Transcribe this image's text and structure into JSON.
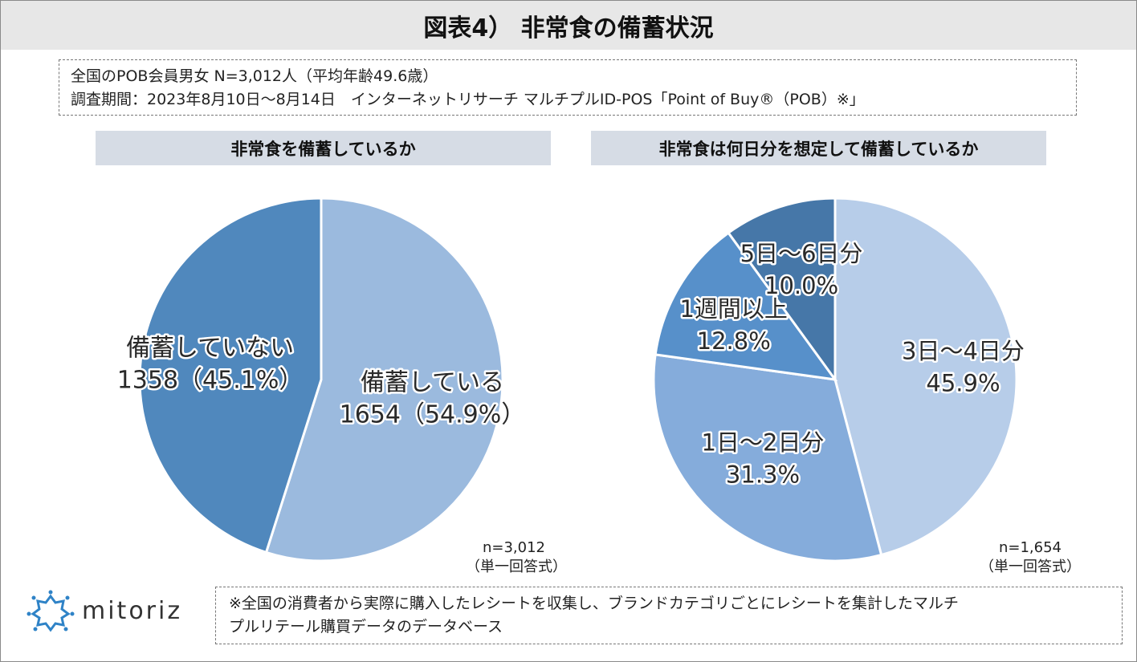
{
  "title": "図表4） 非常食の備蓄状況",
  "info": {
    "line1": "全国のPOB会員男女 N=3,012人（平均年齢49.6歳）",
    "line2": "調査期間：2023年8月10日～8月14日　インターネットリサーチ マルチプルID-POS「Point of Buy®（POB）※」"
  },
  "chart_data": [
    {
      "type": "pie",
      "title": "非常食を備蓄しているか",
      "n_label": "n=3,012",
      "answer_type": "（単一回答式）",
      "slices": [
        {
          "label": "備蓄している",
          "value_text": "1654（54.9%）",
          "count": 1654,
          "percent": 54.9,
          "color": "#9bbade"
        },
        {
          "label": "備蓄していない",
          "value_text": "1358（45.1%）",
          "count": 1358,
          "percent": 45.1,
          "color": "#5088bd"
        }
      ]
    },
    {
      "type": "pie",
      "title": "非常食は何日分を想定して備蓄しているか",
      "n_label": "n=1,654",
      "answer_type": "（単一回答式）",
      "slices": [
        {
          "label": "3日～4日分",
          "value_text": "45.9%",
          "percent": 45.9,
          "color": "#b7cde9"
        },
        {
          "label": "1日～2日分",
          "value_text": "31.3%",
          "percent": 31.3,
          "color": "#85acdb"
        },
        {
          "label": "1週間以上",
          "value_text": "12.8%",
          "percent": 12.8,
          "color": "#5790ca"
        },
        {
          "label": "5日～6日分",
          "value_text": "10.0%",
          "percent": 10.0,
          "color": "#4677a8"
        }
      ]
    }
  ],
  "logo": {
    "text": "mitoriz",
    "icon": "sun-logo-icon",
    "color": "#2f83c7"
  },
  "footnote": {
    "line1": "※全国の消費者から実際に購入したレシートを収集し、ブランドカテゴリごとにレシートを集計したマルチ",
    "line2": "プルリテール購買データのデータベース"
  }
}
